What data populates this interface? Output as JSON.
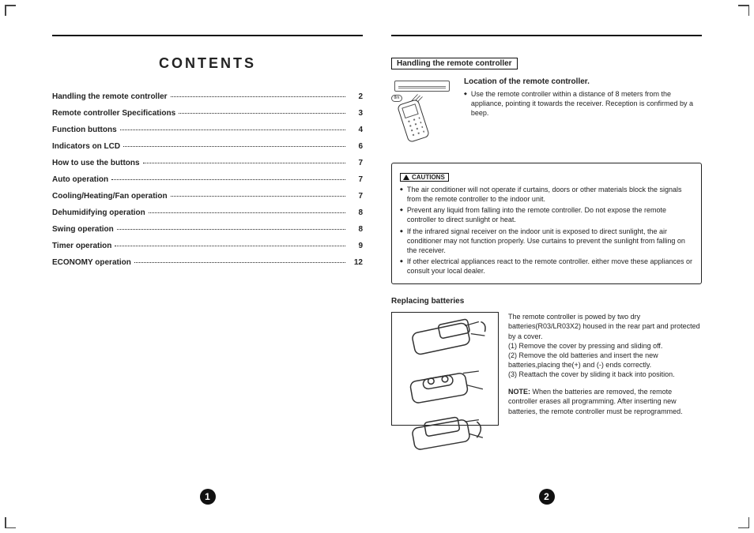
{
  "left": {
    "title": "CONTENTS",
    "toc": [
      {
        "label": "Handling the remote controller",
        "page": "2"
      },
      {
        "label": "Remote controller Specifications",
        "page": "3"
      },
      {
        "label": "Function buttons",
        "page": "4"
      },
      {
        "label": "Indicators on LCD",
        "page": "6"
      },
      {
        "label": "How to use the buttons",
        "page": "7"
      },
      {
        "label": "Auto operation",
        "page": "7"
      },
      {
        "label": "Cooling/Heating/Fan operation",
        "page": "7"
      },
      {
        "label": "Dehumidifying operation",
        "page": "8"
      },
      {
        "label": "Swing operation",
        "page": "8"
      },
      {
        "label": "Timer operation",
        "page": "9"
      },
      {
        "label": "ECONOMY operation",
        "page": "12"
      }
    ],
    "pageNum": "1"
  },
  "right": {
    "sectionTitle": "Handling the remote controller",
    "location": {
      "heading": "Location of the remote controller.",
      "bullet": "Use the remote controller within a distance of 8 meters from the appliance, pointing it towards the receiver. Reception is confirmed by a beep.",
      "distance": "8m"
    },
    "cautions": {
      "label": "CAUTIONS",
      "items": [
        "The air conditioner will not operate if curtains, doors or other materials block the signals from the remote controller to the indoor unit.",
        "Prevent any liquid from falling into the remote controller. Do not expose the remote controller to direct sunlight or heat.",
        "If the infrared signal receiver on the indoor unit is exposed to direct sunlight, the air conditioner may not function properly. Use curtains to prevent the sunlight from falling on the receiver.",
        "If other electrical appliances react to the remote controller. either move these appliances or consult your local dealer."
      ]
    },
    "replacing": {
      "heading": "Replacing batteries",
      "intro": "The remote controller is powed by two dry batteries(R03/LR03X2) housed in the rear part and protected by a cover.",
      "steps": [
        "(1) Remove the cover by pressing and sliding off.",
        "(2) Remove the old batteries and insert the new batteries,placing the(+) and (-) ends correctly.",
        "(3) Reattach the cover by sliding it back into position."
      ],
      "noteLabel": "NOTE:",
      "note": "When the batteries are removed, the remote controller erases all programming.  After inserting new batteries, the remote controller must be reprogrammed."
    },
    "pageNum": "2"
  }
}
